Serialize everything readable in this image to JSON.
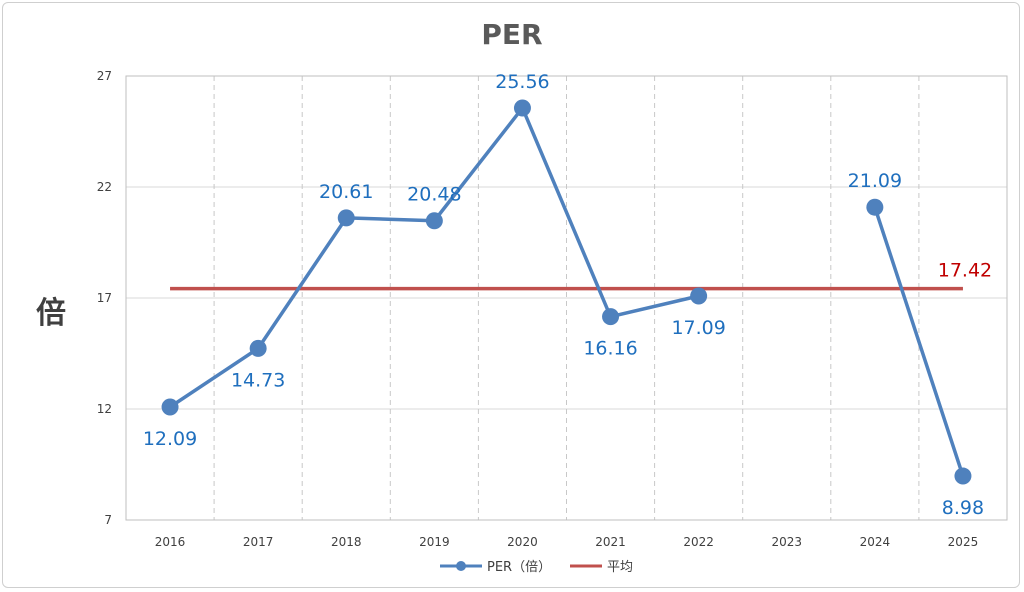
{
  "chart_data": {
    "type": "line",
    "title": "PER",
    "ylabel": "倍",
    "xlabel": "",
    "categories": [
      "2016",
      "2017",
      "2018",
      "2019",
      "2020",
      "2021",
      "2022",
      "2023",
      "2024",
      "2025"
    ],
    "yticks": [
      "27",
      "22",
      "17",
      "12",
      "7"
    ],
    "ylim": [
      7,
      27
    ],
    "grid": {
      "horizontal": true,
      "vertical_dashed": true
    },
    "legend_position": "bottom",
    "series": [
      {
        "name": "PER（倍）",
        "color": "#4f81bd",
        "values": [
          12.09,
          14.73,
          20.61,
          20.48,
          25.56,
          16.16,
          17.09,
          null,
          21.09,
          8.98
        ],
        "labels": [
          "12.09",
          "14.73",
          "20.61",
          "20.48",
          "25.56",
          "16.16",
          "17.09",
          "",
          "21.09",
          "8.98"
        ],
        "label_positions": [
          "below",
          "below",
          "above",
          "above",
          "above",
          "below",
          "below",
          "",
          "above",
          "below"
        ]
      },
      {
        "name": "平均",
        "color": "#c0504d",
        "values": [
          17.42,
          17.42,
          17.42,
          17.42,
          17.42,
          17.42,
          17.42,
          17.42,
          17.42,
          17.42
        ],
        "label": "17.42"
      }
    ],
    "colors": {
      "per": "#4f81bd",
      "avg": "#c0504d",
      "data_label": "#1f6fbe",
      "avg_label": "#c00000"
    }
  }
}
